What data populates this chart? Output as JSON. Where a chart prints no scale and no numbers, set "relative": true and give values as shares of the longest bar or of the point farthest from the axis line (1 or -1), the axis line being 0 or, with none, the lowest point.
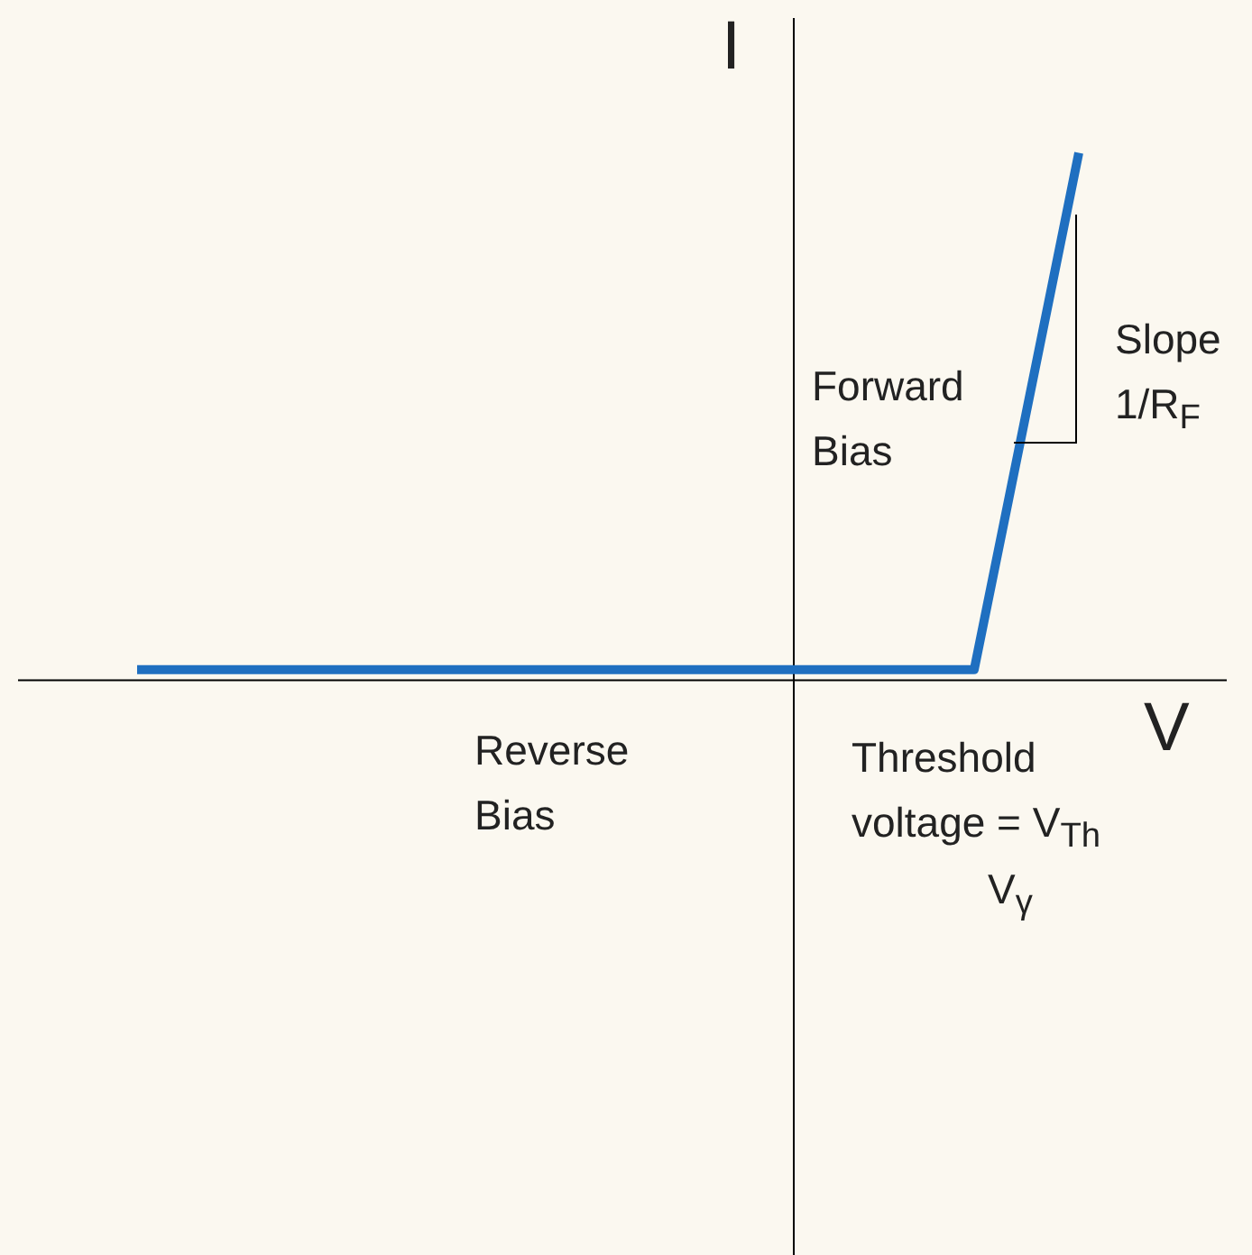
{
  "chart_data": {
    "type": "line",
    "relative": true,
    "xlabel": "V",
    "ylabel": "I",
    "categories": [
      null,
      null,
      null,
      null,
      null,
      null,
      null,
      null,
      null,
      null,
      null,
      null,
      null,
      null,
      null,
      null,
      null,
      null,
      null
    ],
    "tick_labels": false,
    "legend": false,
    "marker": "none",
    "line_style": "solid",
    "series": [
      {
        "color": "#1f6fc0",
        "values": [
          0.02,
          0.02,
          0.02,
          0.02,
          0.02,
          0.02,
          0.02,
          0.02,
          0.02,
          0.02,
          0.02,
          0.02,
          0.02,
          0.02,
          0.02,
          0.02,
          0.02,
          0.51,
          1
        ]
      }
    ],
    "annotations": [
      "Forward Bias",
      "Slope 1/R$_{F}$",
      "Reverse Bias",
      "Threshold voltage = V$_{Th}$",
      "V$_{γ}$"
    ]
  }
}
